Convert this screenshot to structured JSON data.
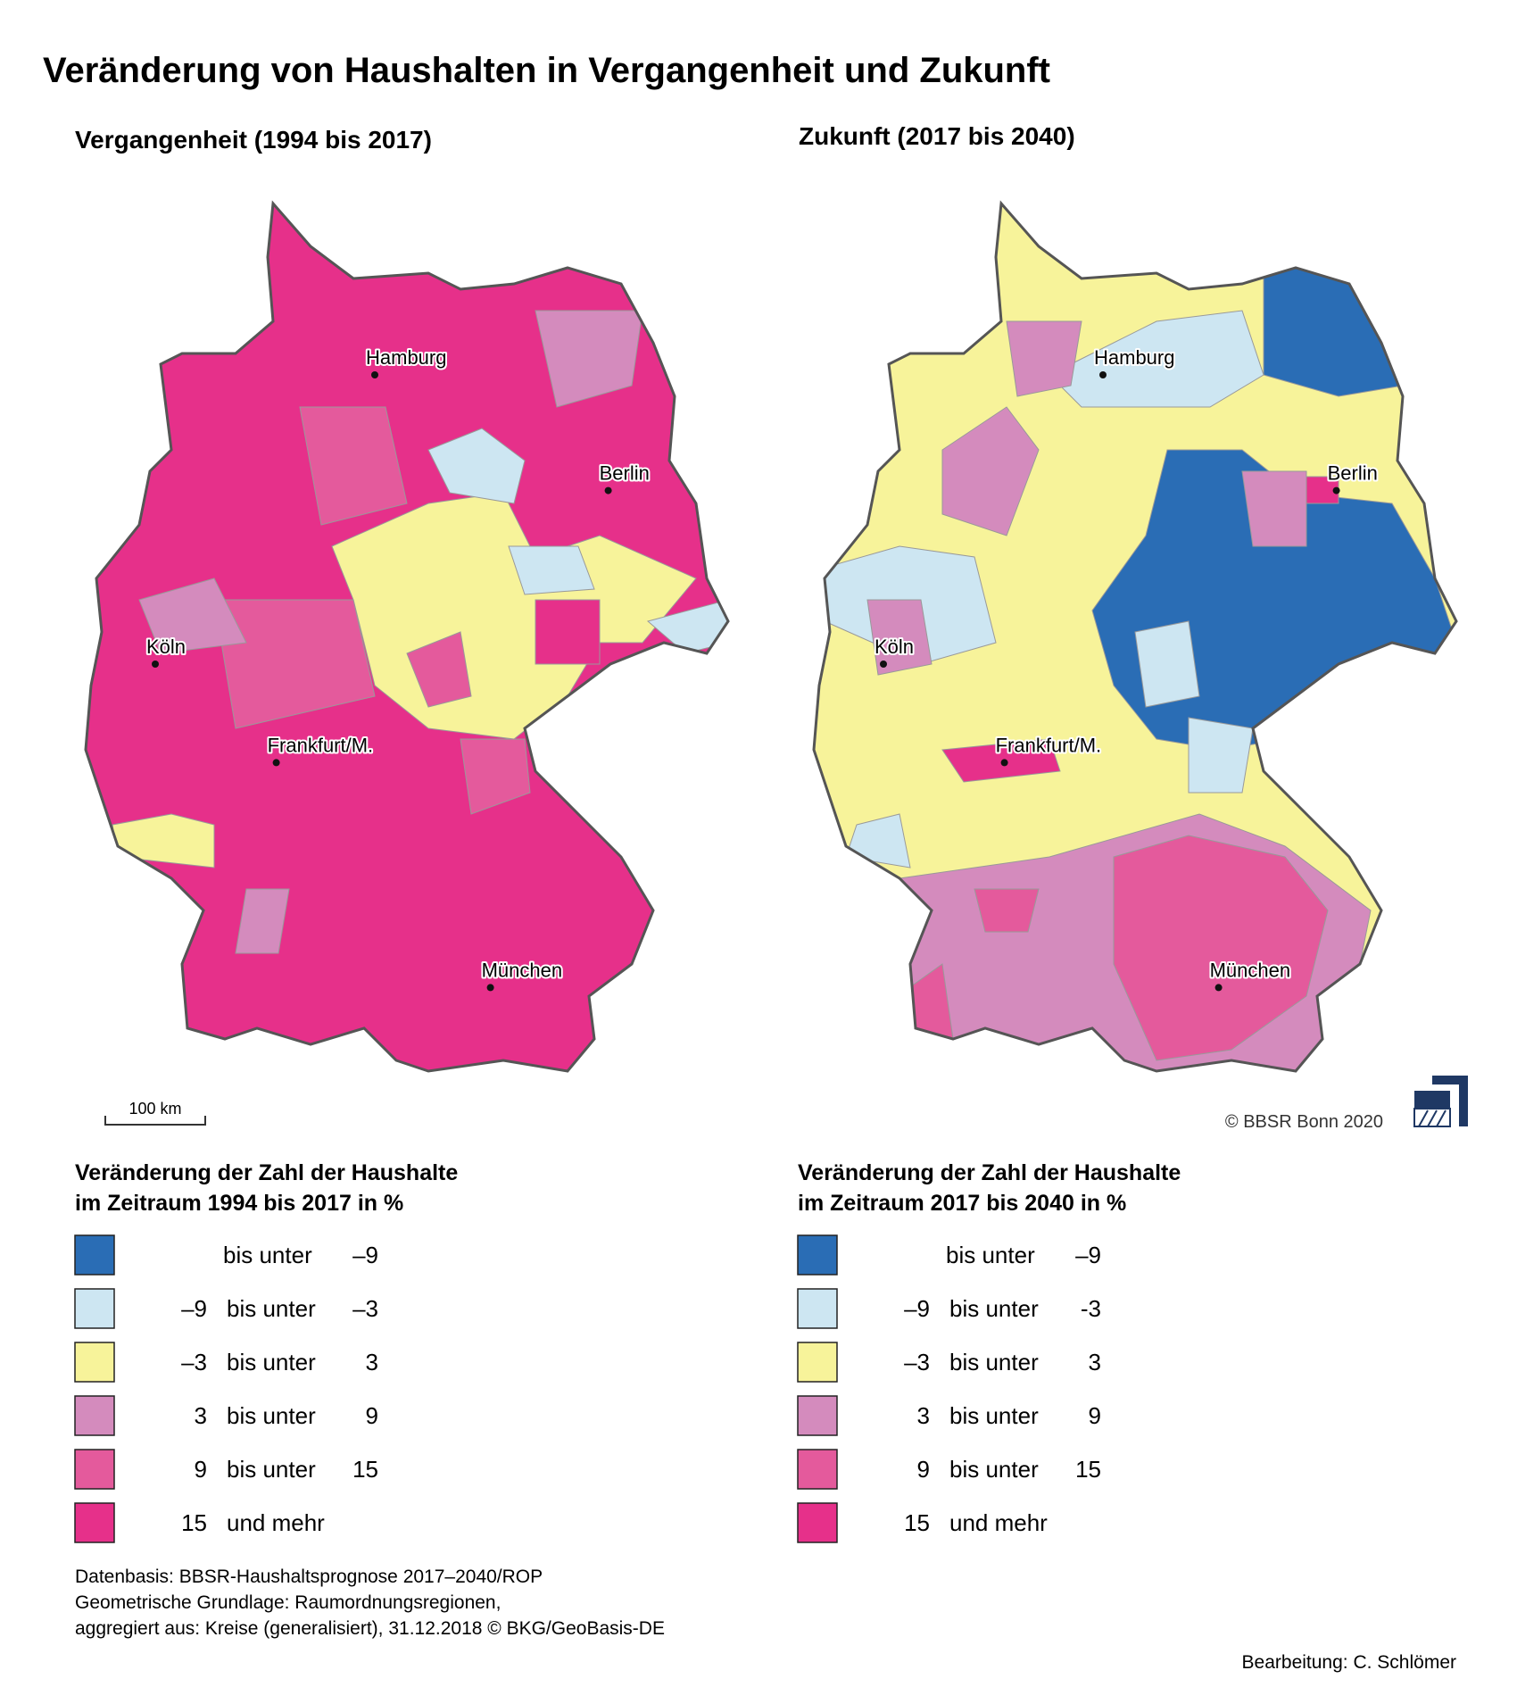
{
  "title": "Veränderung von Haushalten in Vergangenheit und Zukunft",
  "maps": [
    {
      "subtitle": "Vergangenheit (1994 bis 2017)",
      "cities": [
        "Hamburg",
        "Berlin",
        "Köln",
        "Frankfurt/M.",
        "München"
      ],
      "scale": "100 km",
      "legend": {
        "title": [
          "Veränderung der Zahl der Haushalte",
          "im Zeitraum 1994 bis 2017 in %"
        ],
        "items": [
          {
            "label": "bis unter",
            "to": "–9",
            "color": "#2a6db5"
          },
          {
            "from": "–9",
            "label": "bis unter",
            "to": "–3",
            "color": "#cde6f2"
          },
          {
            "from": "–3",
            "label": "bis unter",
            "to": "3",
            "color": "#f7f39a"
          },
          {
            "from": "3",
            "label": "bis unter",
            "to": "9",
            "color": "#d48bbd"
          },
          {
            "from": "9",
            "label": "bis unter",
            "to": "15",
            "color": "#e45a9c"
          },
          {
            "from": "15",
            "label": "und mehr",
            "color": "#e6308a"
          }
        ]
      }
    },
    {
      "subtitle": "Zukunft (2017 bis 2040)",
      "cities": [
        "Hamburg",
        "Berlin",
        "Köln",
        "Frankfurt/M.",
        "München"
      ],
      "copyright": "© BBSR Bonn 2020",
      "legend": {
        "title": [
          "Veränderung der Zahl der Haushalte",
          "im Zeitraum 2017 bis 2040 in %"
        ],
        "items": [
          {
            "label": "bis unter",
            "to": "–9",
            "color": "#2a6db5"
          },
          {
            "from": "–9",
            "label": "bis unter",
            "to": "-3",
            "color": "#cde6f2"
          },
          {
            "from": "–3",
            "label": "bis unter",
            "to": "3",
            "color": "#f7f39a"
          },
          {
            "from": "3",
            "label": "bis unter",
            "to": "9",
            "color": "#d48bbd"
          },
          {
            "from": "9",
            "label": "bis unter",
            "to": "15",
            "color": "#e45a9c"
          },
          {
            "from": "15",
            "label": "und mehr",
            "color": "#e6308a"
          }
        ]
      }
    }
  ],
  "source": [
    "Datenbasis: BBSR-Haushaltsprognose 2017–2040/ROP",
    "Geometrische Grundlage: Raumordnungsregionen,",
    "aggregiert aus: Kreise (generalisiert), 31.12.2018 © BKG/GeoBasis-DE"
  ],
  "author": "Bearbeitung: C. Schlömer"
}
